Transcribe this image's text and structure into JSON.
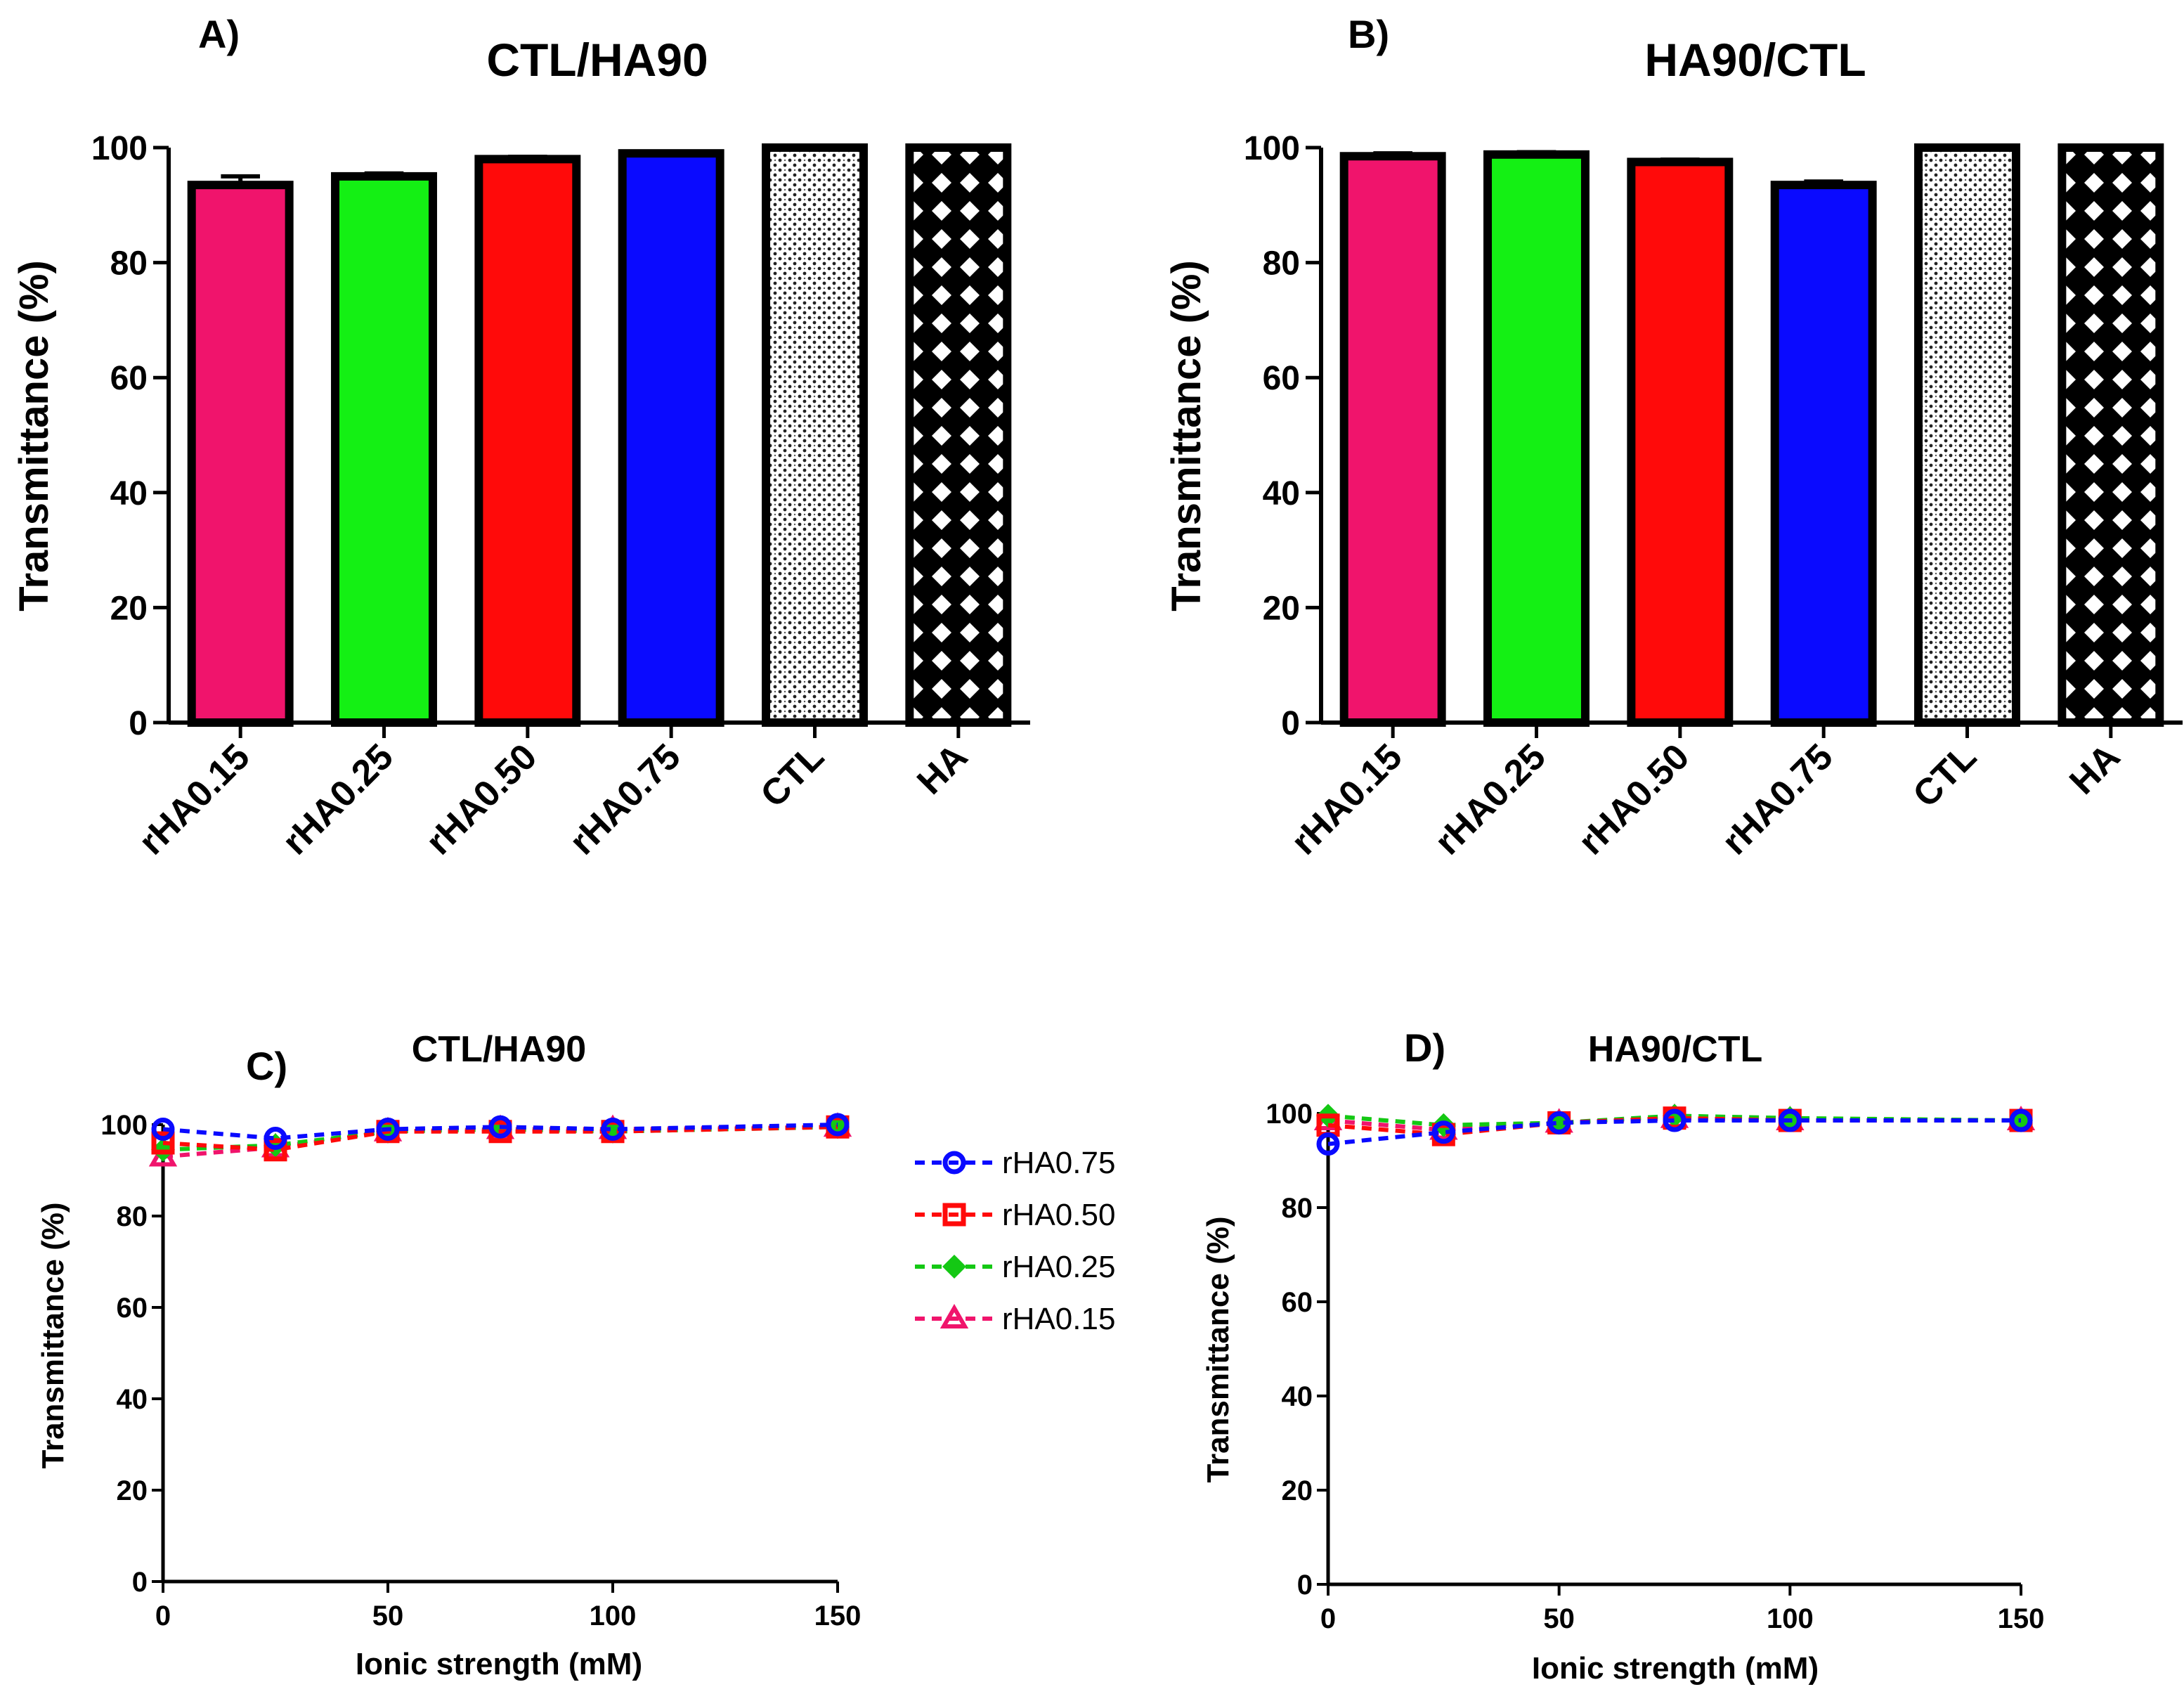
{
  "chart_data": [
    {
      "id": "A",
      "panel_label": "A)",
      "type": "bar",
      "title": "CTL/HA90",
      "ylabel": "Transmittance (%)",
      "xlabel": "",
      "ylim": [
        0,
        100
      ],
      "yticks": [
        "0",
        "20",
        "40",
        "60",
        "80",
        "100"
      ],
      "categories": [
        "rHA0.15",
        "rHA0.25",
        "rHA0.50",
        "rHA0.75",
        "CTL",
        "HA"
      ],
      "values": [
        93.5,
        95,
        98,
        99,
        100,
        100
      ],
      "errors": [
        1.5,
        0.5,
        0.4,
        0.3,
        0,
        0
      ],
      "colors": [
        "#f0146c",
        "#14f014",
        "#ff0a0a",
        "#0a0aff",
        "dots",
        "checker"
      ]
    },
    {
      "id": "B",
      "panel_label": "B)",
      "type": "bar",
      "title": "HA90/CTL",
      "ylabel": "Transmittance (%)",
      "xlabel": "",
      "ylim": [
        0,
        100
      ],
      "yticks": [
        "0",
        "20",
        "40",
        "60",
        "80",
        "100"
      ],
      "categories": [
        "rHA0.15",
        "rHA0.25",
        "rHA0.50",
        "rHA0.75",
        "CTL",
        "HA"
      ],
      "values": [
        98.5,
        98.8,
        97.5,
        93.5,
        100,
        100
      ],
      "errors": [
        0.5,
        0.4,
        0.4,
        0.6,
        0,
        0
      ],
      "colors": [
        "#f0146c",
        "#14f014",
        "#ff0a0a",
        "#0a0aff",
        "dots",
        "checker"
      ]
    },
    {
      "id": "C",
      "panel_label": "C)",
      "type": "line",
      "title": "CTL/HA90",
      "ylabel": "Transmittance (%)",
      "xlabel": "Ionic strength (mM)",
      "xlim": [
        0,
        150
      ],
      "ylim": [
        0,
        100
      ],
      "xticks": [
        "0",
        "50",
        "100",
        "150"
      ],
      "yticks": [
        "0",
        "20",
        "40",
        "60",
        "80",
        "100"
      ],
      "x": [
        0,
        25,
        50,
        75,
        100,
        150
      ],
      "legend_position": "right",
      "series": [
        {
          "name": "rHA0.75",
          "marker": "circle",
          "color": "#0a0aff",
          "values": [
            99,
            97,
            99,
            99.5,
            99,
            100
          ]
        },
        {
          "name": "rHA0.50",
          "marker": "square",
          "color": "#ff0a0a",
          "values": [
            96,
            94.5,
            98.5,
            98.5,
            98.5,
            99.5
          ]
        },
        {
          "name": "rHA0.25",
          "marker": "diamond",
          "color": "#14c814",
          "values": [
            94.5,
            95.5,
            98.5,
            99,
            98.5,
            99.5
          ]
        },
        {
          "name": "rHA0.15",
          "marker": "triangle",
          "color": "#f0146c",
          "values": [
            93,
            95,
            98.5,
            99,
            99,
            99.5
          ]
        }
      ]
    },
    {
      "id": "D",
      "panel_label": "D)",
      "type": "line",
      "title": "HA90/CTL",
      "ylabel": "Transmittance (%)",
      "xlabel": "Ionic strength (mM)",
      "xlim": [
        0,
        150
      ],
      "ylim": [
        0,
        100
      ],
      "xticks": [
        "0",
        "50",
        "100",
        "150"
      ],
      "yticks": [
        "0",
        "20",
        "40",
        "60",
        "80",
        "100"
      ],
      "x": [
        0,
        25,
        50,
        75,
        100,
        150
      ],
      "series": [
        {
          "name": "rHA0.75",
          "marker": "circle",
          "color": "#0a0aff",
          "values": [
            93.5,
            96,
            98,
            98.5,
            98.5,
            98.5
          ]
        },
        {
          "name": "rHA0.50",
          "marker": "square",
          "color": "#ff0a0a",
          "values": [
            97.5,
            95.5,
            98,
            99,
            98.5,
            98.5
          ]
        },
        {
          "name": "rHA0.25",
          "marker": "diamond",
          "color": "#14c814",
          "values": [
            99.5,
            97.5,
            98,
            99.5,
            99,
            98.5
          ]
        },
        {
          "name": "rHA0.15",
          "marker": "triangle",
          "color": "#f0146c",
          "values": [
            98.5,
            96.5,
            98,
            99,
            98.5,
            98.5
          ]
        }
      ]
    }
  ]
}
